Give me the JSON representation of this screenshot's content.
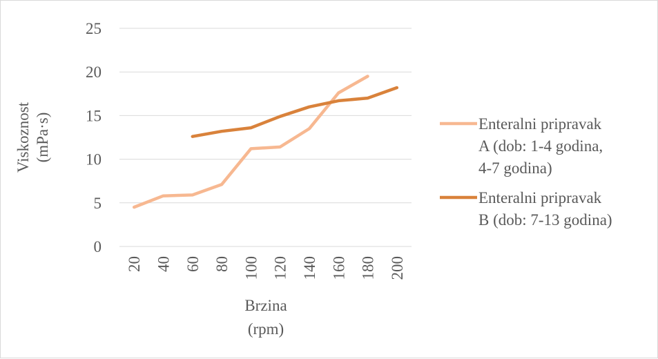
{
  "chart_data": {
    "type": "line",
    "categories": [
      "20",
      "40",
      "60",
      "80",
      "100",
      "120",
      "140",
      "160",
      "180",
      "200"
    ],
    "series": [
      {
        "name": "Enteralni pripravak A (dob: 1-4 godina, 4-7 godina)",
        "legend_lines": [
          "Enteralni pripravak",
          "A (dob: 1-4 godina,",
          "4-7 godina)"
        ],
        "values": [
          4.5,
          5.8,
          5.9,
          7.1,
          11.2,
          11.4,
          13.5,
          17.6,
          19.5,
          null
        ],
        "color": "#f7b891"
      },
      {
        "name": "Enteralni pripravak B (dob: 7-13 godina)",
        "legend_lines": [
          "Enteralni pripravak",
          "B (dob: 7-13 godina)"
        ],
        "values": [
          null,
          null,
          12.6,
          13.2,
          13.6,
          14.9,
          16.0,
          16.7,
          17.0,
          18.2
        ],
        "color": "#d9823b"
      }
    ],
    "yticks": [
      0,
      5,
      10,
      15,
      20,
      25
    ],
    "ylim": [
      0,
      25
    ],
    "ylabel_lines": [
      "Viskoznost",
      "(mPa·s)"
    ],
    "xlabel_lines": [
      "Brzina",
      "(rpm)"
    ],
    "grid": true,
    "gridColor": "#d9d9d9",
    "legend": "right"
  }
}
